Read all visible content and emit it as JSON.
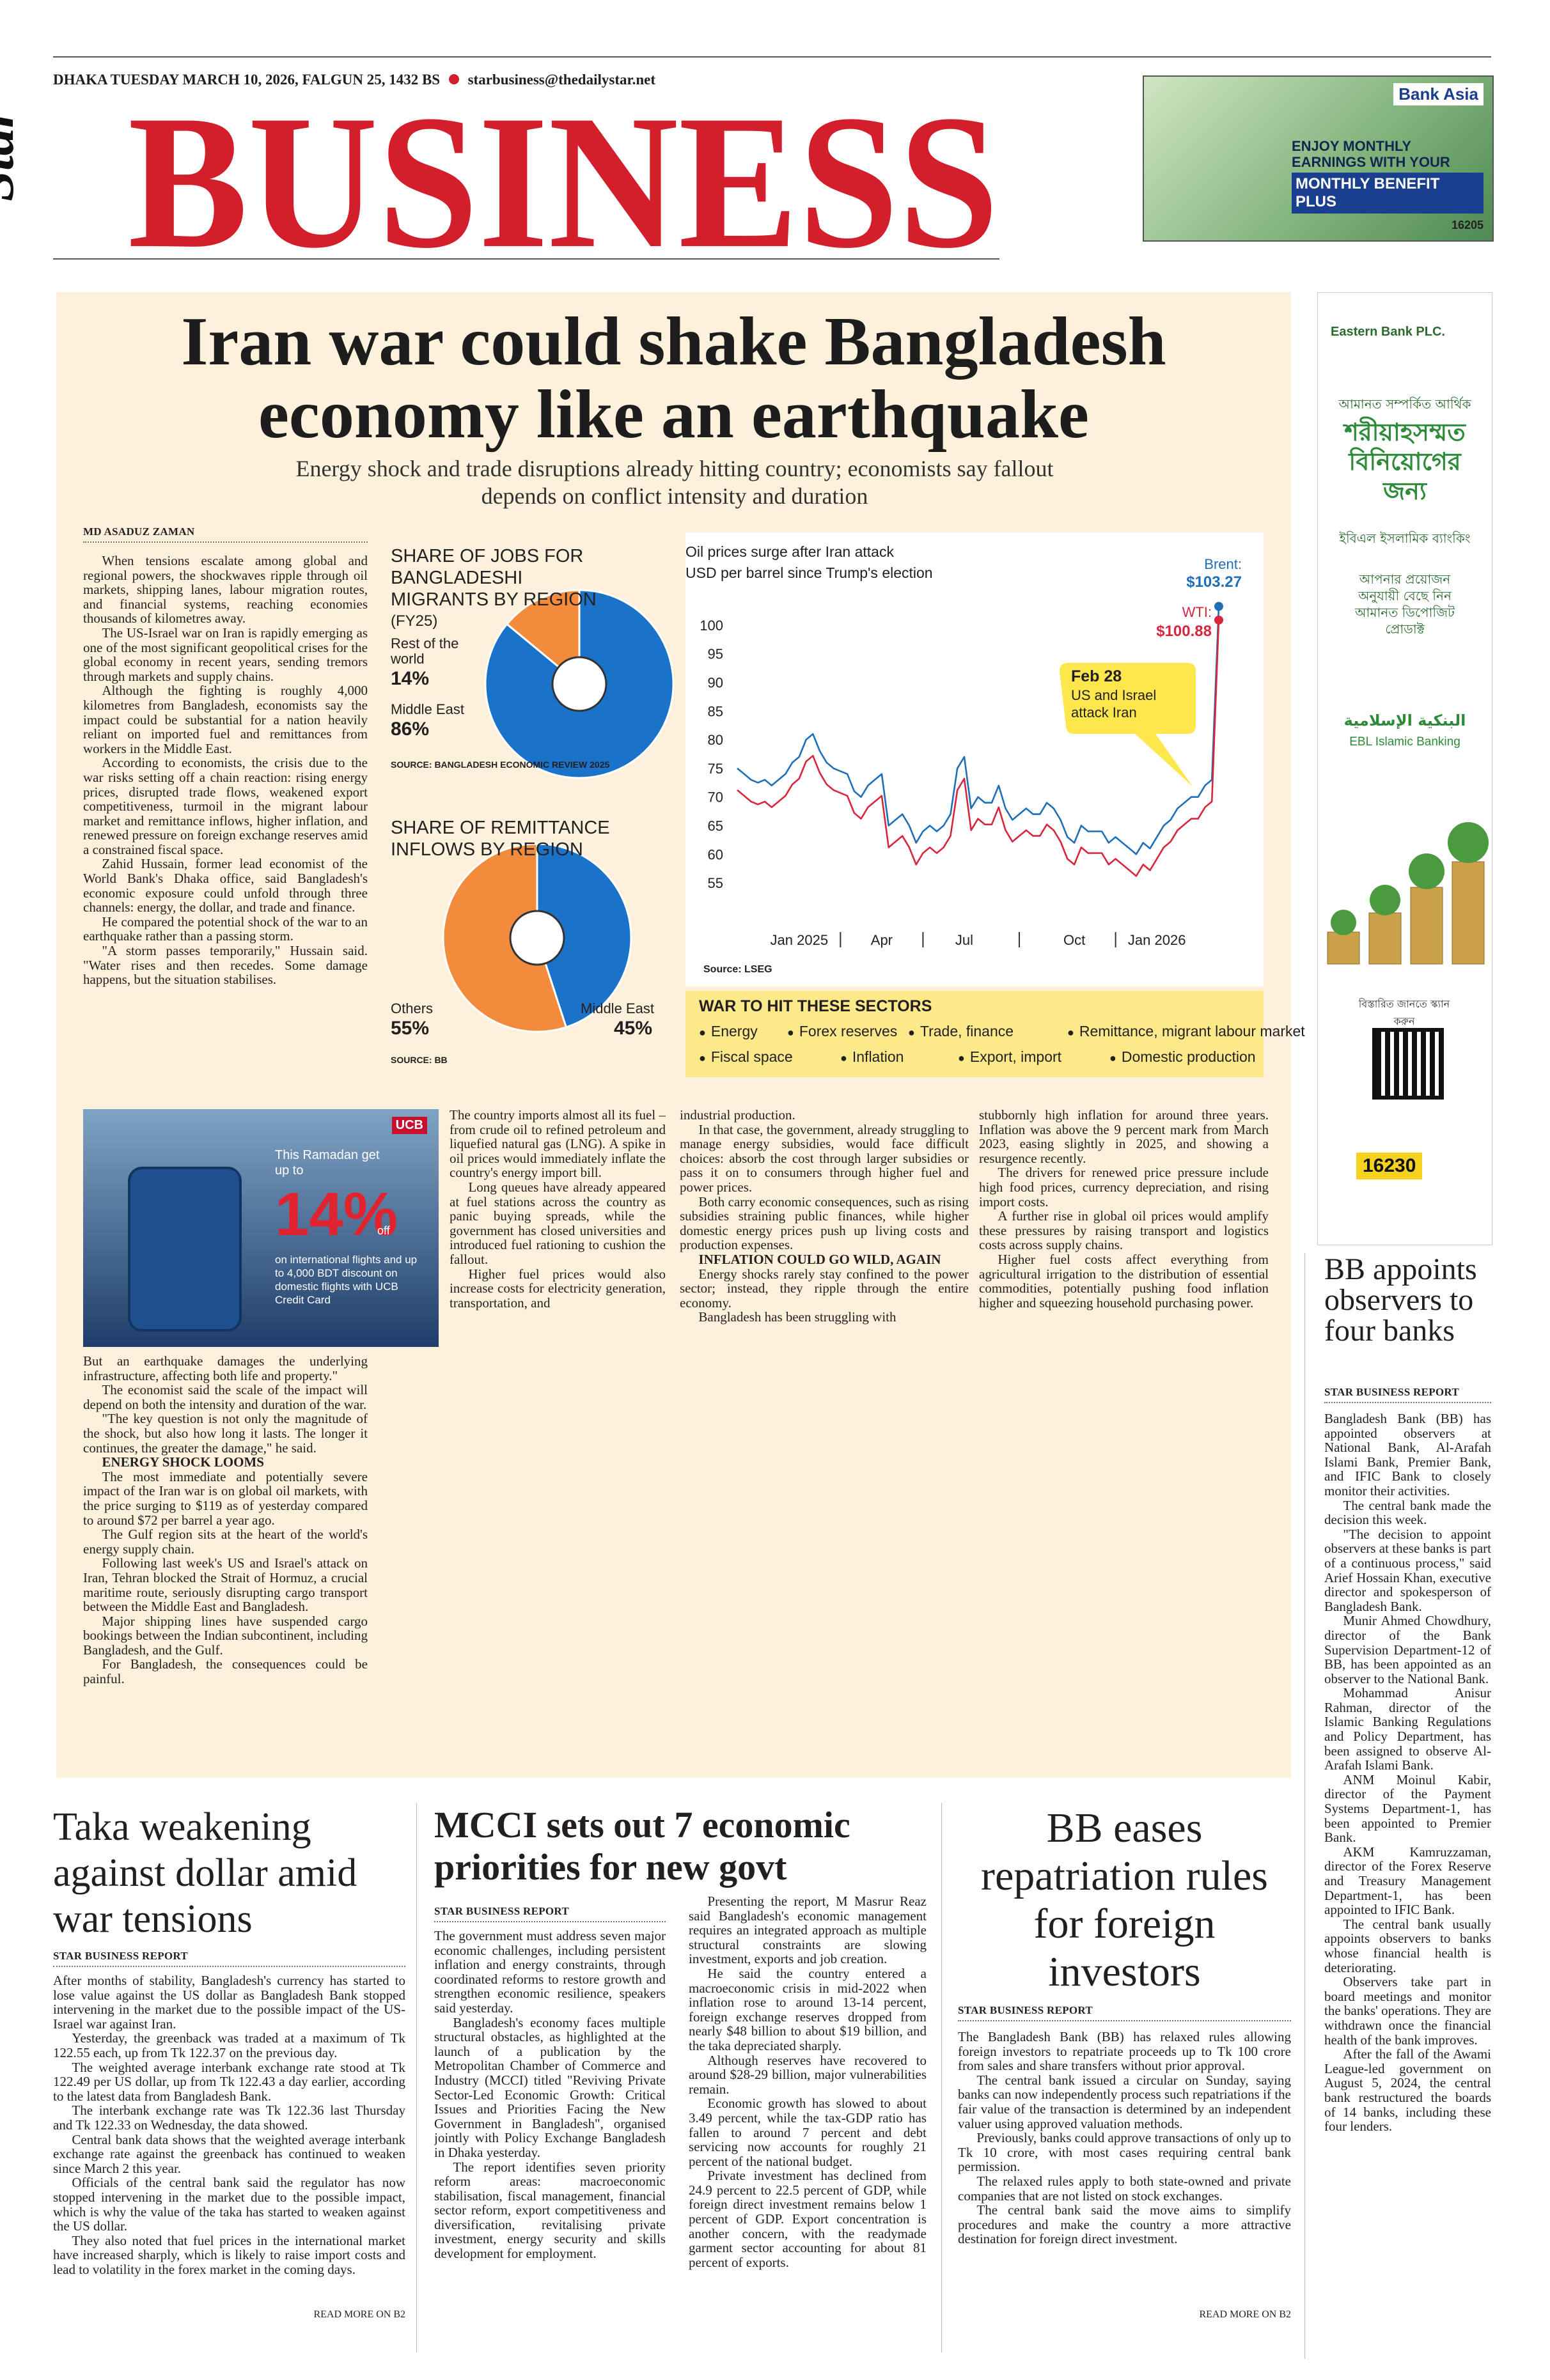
{
  "dateline": {
    "text": "DHAKA TUESDAY MARCH 10, 2026, FALGUN 25, 1432 BS",
    "email": "starbusiness@thedailystar.net"
  },
  "masthead": {
    "star": "Star",
    "title": "BUSINESS"
  },
  "ads": {
    "bank_asia": {
      "brand": "Bank Asia",
      "line": "ENJOY MONTHLY EARNINGS WITH YOUR DEPOSIT",
      "product": "MONTHLY BENEFIT PLUS",
      "hotline": "16205"
    },
    "eastern_bank": {
      "brand": "Eastern Bank PLC.",
      "tag": "আমানত সম্পর্কিত আর্থিক",
      "headline": "শরীয়াহসম্মত বিনিয়োগের জন্য",
      "sub": "ইবিএল ইসলামিক ব্যাংকিং",
      "offer": "আপনার প্রয়োজন অনুযায়ী বেছে নিন আমানত ডিপোজিট প্রোডাক্ট",
      "arabic": "البنكية الإسلامية",
      "english": "EBL Islamic Banking",
      "scan": "বিস্তারিত জানতে স্ক্যান করুন",
      "hotline": "16230"
    },
    "ucb": {
      "brand": "UCB",
      "lead": "This Ramadan get up to",
      "big": "14%",
      "off": "off",
      "text": "on international flights and up to 4,000 BDT discount on domestic flights with UCB Credit Card"
    }
  },
  "lead": {
    "headline": "Iran war could shake Bangladesh economy like an earthquake",
    "subhead": "Energy shock and trade disruptions already hitting country; economists say fallout depends on conflict intensity and duration",
    "byline": "MD ASADUZ ZAMAN",
    "col_a": [
      "When tensions escalate among global and regional powers, the shockwaves ripple through oil markets, shipping lanes, labour migration routes, and financial systems, reaching economies thousands of kilometres away.",
      "The US-Israel war on Iran is rapidly emerging as one of the most significant geopolitical crises for the global economy in recent years, sending tremors through markets and supply chains.",
      "Although the fighting is roughly 4,000 kilometres from Bangladesh, economists say the impact could be substantial for a nation heavily reliant on imported fuel and remittances from workers in the Middle East.",
      "According to economists, the crisis due to the war risks setting off a chain reaction: rising energy prices, disrupted trade flows, weakened export competitiveness, turmoil in the migrant labour market and remittance inflows, higher inflation, and renewed pressure on foreign exchange reserves amid a constrained fiscal space.",
      "Zahid Hussain, former lead economist of the World Bank's Dhaka office, said Bangladesh's economic exposure could unfold through three channels: energy, the dollar, and trade and finance.",
      "He compared the potential shock of the war to an earthquake rather than a passing storm.",
      "\"A storm passes temporarily,\" Hussain said. \"Water rises and then recedes. Some damage happens, but the situation stabilises."
    ],
    "col_b": [
      "But an earthquake damages the underlying infrastructure, affecting both life and property.\"",
      "The economist said the scale of the impact will depend on both the intensity and duration of the war.",
      "\"The key question is not only the magnitude of the shock, but also how long it lasts. The longer it continues, the greater the damage,\" he said."
    ],
    "subhead_energy": "ENERGY SHOCK LOOMS",
    "col_b2": [
      "The most immediate and potentially severe impact of the Iran war is on global oil markets, with the price surging to $119 as of yesterday compared to around $72 per barrel a year ago.",
      "The Gulf region sits at the heart of the world's energy supply chain.",
      "Following last week's US and Israel's attack on Iran, Tehran blocked the Strait of Hormuz, a crucial maritime route, seriously disrupting cargo transport between the Middle East and Bangladesh.",
      "Major shipping lines have suspended cargo bookings between the Indian subcontinent, including Bangladesh, and the Gulf.",
      "For Bangladesh, the consequences could be painful."
    ],
    "col_c": [
      "The country imports almost all its fuel – from crude oil to refined petroleum and liquefied natural gas (LNG). A spike in oil prices would immediately inflate the country's energy import bill.",
      "Long queues have already appeared at fuel stations across the country as panic buying spreads, while the government has closed universities and introduced fuel rationing to cushion the fallout.",
      "Higher fuel prices would also increase costs for electricity generation, transportation, and"
    ],
    "col_d": [
      "industrial production.",
      "In that case, the government, already struggling to manage energy subsidies, would face difficult choices: absorb the cost through larger subsidies or pass it on to consumers through higher fuel and power prices.",
      "Both carry economic consequences, such as rising subsidies straining public finances, while higher domestic energy prices push up living costs and production expenses."
    ],
    "subhead_inflation": "INFLATION COULD GO WILD, AGAIN",
    "col_d2": [
      "Energy shocks rarely stay confined to the power sector; instead, they ripple through the entire economy.",
      "Bangladesh has been struggling with"
    ],
    "col_e": [
      "stubbornly high inflation for around three years. Inflation was above the 9 percent mark from March 2023, easing slightly in 2025, and showing a resurgence recently.",
      "The drivers for renewed price pressure include high food prices, currency depreciation, and rising import costs.",
      "A further rise in global oil prices would amplify these pressures by raising transport and logistics costs across supply chains.",
      "Higher fuel costs affect everything from agricultural irrigation to the distribution of essential commodities, potentially pushing food inflation higher and squeezing household purchasing power."
    ]
  },
  "chart_data": [
    {
      "type": "pie",
      "title": "SHARE OF JOBS FOR BANGLADESHI MIGRANTS BY REGION",
      "subtitle": "(FY25)",
      "categories": [
        "Rest of the world",
        "Middle East"
      ],
      "values": [
        14,
        86
      ],
      "value_labels": [
        "14%",
        "86%"
      ],
      "colors": [
        "#f28b3b",
        "#1a73c9"
      ],
      "source": "SOURCE: BANGLADESH ECONOMIC REVIEW 2025"
    },
    {
      "type": "pie",
      "title": "SHARE OF REMITTANCE INFLOWS BY REGION",
      "categories": [
        "Others",
        "Middle East"
      ],
      "values": [
        55,
        45
      ],
      "value_labels": [
        "55%",
        "45%"
      ],
      "colors": [
        "#f28b3b",
        "#1a73c9"
      ],
      "source": "SOURCE: BB"
    },
    {
      "type": "line",
      "title": "Oil prices surge after Iran attack",
      "subtitle": "USD per barrel since Trump's election",
      "source": "Source: LSEG",
      "annotation": {
        "title": "Feb 28",
        "text": "US and Israel attack Iran"
      },
      "categories": [
        null,
        null,
        null,
        null,
        null,
        null,
        null,
        null,
        null,
        "Jan 2025",
        null,
        null,
        null,
        null,
        null,
        null,
        null,
        null,
        null,
        null,
        null,
        "Apr",
        null,
        null,
        null,
        null,
        null,
        null,
        null,
        null,
        null,
        null,
        null,
        "Jul",
        null,
        null,
        null,
        null,
        null,
        null,
        null,
        null,
        null,
        null,
        null,
        null,
        null,
        null,
        null,
        "Oct",
        null,
        null,
        null,
        null,
        null,
        null,
        null,
        null,
        null,
        null,
        null,
        "Jan 2026",
        null,
        null,
        null,
        null,
        null,
        null,
        null,
        null,
        null
      ],
      "series": [
        {
          "name": "Brent:",
          "color": "#1f6fb8",
          "values": [
            75,
            74,
            73,
            72.5,
            73,
            72,
            73,
            74,
            76,
            77,
            80,
            81,
            78,
            76,
            75,
            74.5,
            74,
            71,
            70,
            72,
            73,
            74,
            65,
            66,
            67,
            65,
            62,
            64,
            65,
            64,
            65,
            67,
            75,
            77,
            68,
            70,
            69,
            69,
            72,
            68,
            66,
            67,
            68,
            67,
            67,
            69,
            68,
            66,
            63,
            62,
            65,
            64,
            64,
            64,
            62,
            63,
            62,
            61,
            60,
            62,
            61,
            63,
            65,
            66,
            68,
            69,
            70,
            70,
            72,
            73,
            103.27
          ],
          "value_labels": [
            null,
            null,
            null,
            null,
            null,
            null,
            null,
            null,
            null,
            null,
            null,
            null,
            null,
            null,
            null,
            null,
            null,
            null,
            null,
            null,
            null,
            null,
            null,
            null,
            null,
            null,
            null,
            null,
            null,
            null,
            null,
            null,
            null,
            null,
            null,
            null,
            null,
            null,
            null,
            null,
            null,
            null,
            null,
            null,
            null,
            null,
            null,
            null,
            null,
            null,
            null,
            null,
            null,
            null,
            null,
            null,
            null,
            null,
            null,
            null,
            null,
            null,
            null,
            null,
            null,
            null,
            null,
            null,
            null,
            null,
            "$103.27"
          ]
        },
        {
          "name": "WTI:",
          "color": "#d7263d",
          "values": [
            71.2,
            70.2,
            69.2,
            68.7,
            69.2,
            68.2,
            69.2,
            70.2,
            72.2,
            73.2,
            76.2,
            77.2,
            74.2,
            72.2,
            71.2,
            70.7,
            70.2,
            67.2,
            66.2,
            68.2,
            69.2,
            70.2,
            61.2,
            62.2,
            63.2,
            61.2,
            58.2,
            60.2,
            61.2,
            60.2,
            61.2,
            63.2,
            71.2,
            73.2,
            64.2,
            66.2,
            65.2,
            65.2,
            68.2,
            64.2,
            62.2,
            63.2,
            64.2,
            63.2,
            63.2,
            65.2,
            64.2,
            62.2,
            59.2,
            58.2,
            61.2,
            60.2,
            60.2,
            60.2,
            58.2,
            59.2,
            58.2,
            57.2,
            56.2,
            58.2,
            57.2,
            59.2,
            61.2,
            62.2,
            64.2,
            65.2,
            66.2,
            66.2,
            68.2,
            69.2,
            100.88
          ],
          "value_labels": [
            null,
            null,
            null,
            null,
            null,
            null,
            null,
            null,
            null,
            null,
            null,
            null,
            null,
            null,
            null,
            null,
            null,
            null,
            null,
            null,
            null,
            null,
            null,
            null,
            null,
            null,
            null,
            null,
            null,
            null,
            null,
            null,
            null,
            null,
            null,
            null,
            null,
            null,
            null,
            null,
            null,
            null,
            null,
            null,
            null,
            null,
            null,
            null,
            null,
            null,
            null,
            null,
            null,
            null,
            null,
            null,
            null,
            null,
            null,
            null,
            null,
            null,
            null,
            null,
            null,
            null,
            null,
            null,
            null,
            null,
            "$100.88"
          ]
        }
      ],
      "ylim": [
        52,
        104
      ],
      "yticks": [
        55,
        60,
        65,
        70,
        75,
        80,
        85,
        90,
        95,
        100
      ],
      "grid": false
    }
  ],
  "sectors": {
    "title": "WAR TO HIT THESE SECTORS",
    "items": [
      "Energy",
      "Forex reserves",
      "Trade, finance",
      "Remittance, migrant labour market",
      "Fiscal space",
      "Inflation",
      "Export, import",
      "Domestic production"
    ]
  },
  "bb_observers": {
    "headline": "BB appoints observers to four banks",
    "byline": "STAR BUSINESS REPORT",
    "body": [
      "Bangladesh Bank (BB) has appointed observers at National Bank, Al-Arafah Islami Bank, Premier Bank, and IFIC Bank to closely monitor their activities.",
      "The central bank made the decision this week.",
      "\"The decision to appoint observers at these banks is part of a continuous process,\" said Arief Hossain Khan, executive director and spokesperson of Bangladesh Bank.",
      "Munir Ahmed Chowdhury, director of the Bank Supervision Department-12 of BB, has been appointed as an observer to the National Bank.",
      "Mohammad Anisur Rahman, director of the Islamic Banking Regulations and Policy Department, has been assigned to observe Al-Arafah Islami Bank.",
      "ANM Moinul Kabir, director of the Payment Systems Department-1, has been appointed to Premier Bank.",
      "AKM Kamruzzaman, director of the Forex Reserve and Treasury Management Department-1, has been appointed to IFIC Bank.",
      "The central bank usually appoints observers to banks whose financial health is deteriorating.",
      "Observers take part in board meetings and monitor the banks' operations. They are withdrawn once the financial health of the bank improves.",
      "After the fall of the Awami League-led government on August 5, 2024, the central bank restructured the boards of 14 banks, including these four lenders."
    ]
  },
  "taka": {
    "headline": "Taka weakening against dollar amid war tensions",
    "byline": "STAR BUSINESS REPORT",
    "body": [
      "After months of stability, Bangladesh's currency has started to lose value against the US dollar as Bangladesh Bank stopped intervening in the market due to the possible impact of the US-Israel war against Iran.",
      "Yesterday, the greenback was traded at a maximum of Tk 122.55 each, up from Tk 122.37 on the previous day.",
      "The weighted average interbank exchange rate stood at Tk 122.49 per US dollar, up from Tk 122.43 a day earlier, according to the latest data from Bangladesh Bank.",
      "The interbank exchange rate was Tk 122.36 last Thursday and Tk 122.33 on Wednesday, the data showed.",
      "Central bank data shows that the weighted average interbank exchange rate against the greenback has continued to weaken since March 2 this year.",
      "Officials of the central bank said the regulator has now stopped intervening in the market due to the possible impact, which is why the value of the taka has started to weaken against the US dollar.",
      "They also noted that fuel prices in the international market have increased sharply, which is likely to raise import costs and lead to volatility in the forex market in the coming days."
    ],
    "more": "READ MORE ON B2"
  },
  "mcci": {
    "headline": "MCCI sets out 7 economic priorities for new govt",
    "byline": "STAR BUSINESS REPORT",
    "col_a": [
      "The government must address seven major economic challenges, including persistent inflation and energy constraints, through coordinated reforms to restore growth and strengthen economic resilience, speakers said yesterday.",
      "Bangladesh's economy faces multiple structural obstacles, as highlighted at the launch of a publication by the Metropolitan Chamber of Commerce and Industry (MCCI) titled \"Reviving Private Sector-Led Economic Growth: Critical Issues and Priorities Facing the New Government in Bangladesh\", organised jointly with Policy Exchange Bangladesh in Dhaka yesterday.",
      "The report identifies seven priority reform areas: macroeconomic stabilisation, fiscal management, financial sector reform, export competitiveness and diversification, revitalising private investment, energy security and skills development for employment."
    ],
    "col_b": [
      "Presenting the report, M Masrur Reaz said Bangladesh's economic management requires an integrated approach as multiple structural constraints are slowing investment, exports and job creation.",
      "He said the country entered a macroeconomic crisis in mid-2022 when inflation rose to around 13-14 percent, foreign exchange reserves dropped from nearly $48 billion to about $19 billion, and the taka depreciated sharply.",
      "Although reserves have recovered to around $28-29 billion, major vulnerabilities remain.",
      "Economic growth has slowed to about 3.49 percent, while the tax-GDP ratio has fallen to around 7 percent and debt servicing now accounts for roughly 21 percent of the national budget.",
      "Private investment has declined from 24.9 percent to 22.5 percent of GDP, while foreign direct investment remains below 1 percent of GDP. Export concentration is another concern, with the readymade garment sector accounting for about 81 percent of exports."
    ]
  },
  "bb_eases": {
    "headline": "BB eases repatriation rules for foreign investors",
    "byline": "STAR BUSINESS REPORT",
    "body": [
      "The Bangladesh Bank (BB) has relaxed rules allowing foreign investors to repatriate proceeds up to Tk 100 crore from sales and share transfers without prior approval.",
      "The central bank issued a circular on Sunday, saying banks can now independently process such repatriations if the fair value of the transaction is determined by an independent valuer using approved valuation methods.",
      "Previously, banks could approve transactions of only up to Tk 10 crore, with most cases requiring central bank permission.",
      "The relaxed rules apply to both state-owned and private companies that are not listed on stock exchanges.",
      "The central bank said the move aims to simplify procedures and make the country a more attractive destination for foreign direct investment."
    ],
    "more": "READ MORE ON B2"
  }
}
